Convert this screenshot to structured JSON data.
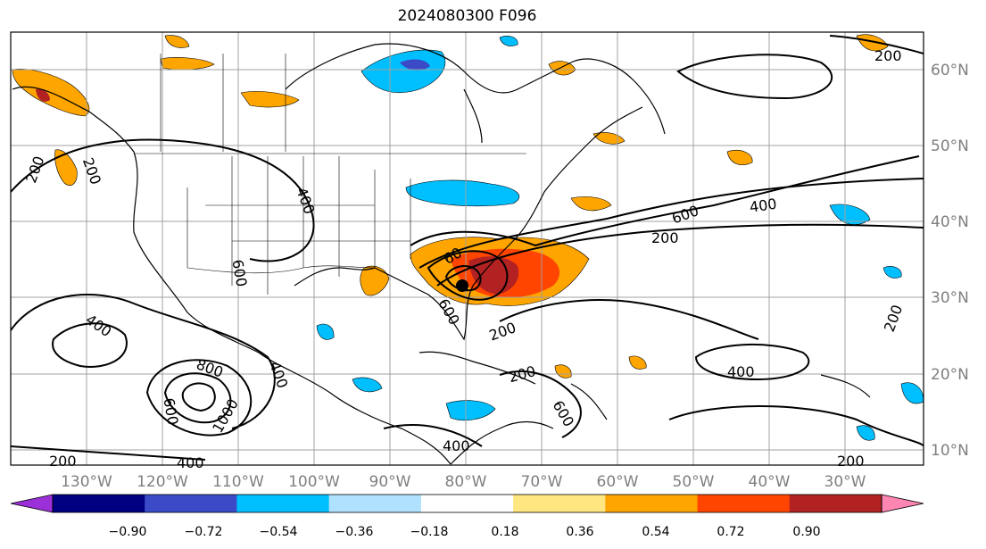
{
  "title": "2024080300 F096",
  "map": {
    "lon_labels": [
      "130°W",
      "120°W",
      "110°W",
      "100°W",
      "90°W",
      "80°W",
      "70°W",
      "60°W",
      "50°W",
      "40°W",
      "30°W"
    ],
    "lat_labels": [
      "60°N",
      "50°N",
      "40°N",
      "30°N",
      "20°N",
      "10°N"
    ],
    "contour_labels": [
      "200",
      "200",
      "200",
      "200",
      "200",
      "200",
      "200",
      "200",
      "200",
      "400",
      "400",
      "400",
      "400",
      "400",
      "400",
      "400",
      "600",
      "600",
      "600",
      "600",
      "600",
      "800",
      "1000",
      "60"
    ],
    "colors": {
      "land_line": "#000000",
      "grid": "#a0a0a0",
      "contour": "#000000"
    }
  },
  "colorbar": {
    "tick_labels": [
      "−0.90",
      "−0.72",
      "−0.54",
      "−0.36",
      "−0.18",
      "0.18",
      "0.36",
      "0.54",
      "0.72",
      "0.90"
    ],
    "colors": [
      "#9b30d9",
      "#000080",
      "#3b4bc8",
      "#00bfff",
      "#b0e2ff",
      "#ffffff",
      "#ffe680",
      "#ffa500",
      "#ff4500",
      "#b22222",
      "#ff85b3"
    ]
  }
}
